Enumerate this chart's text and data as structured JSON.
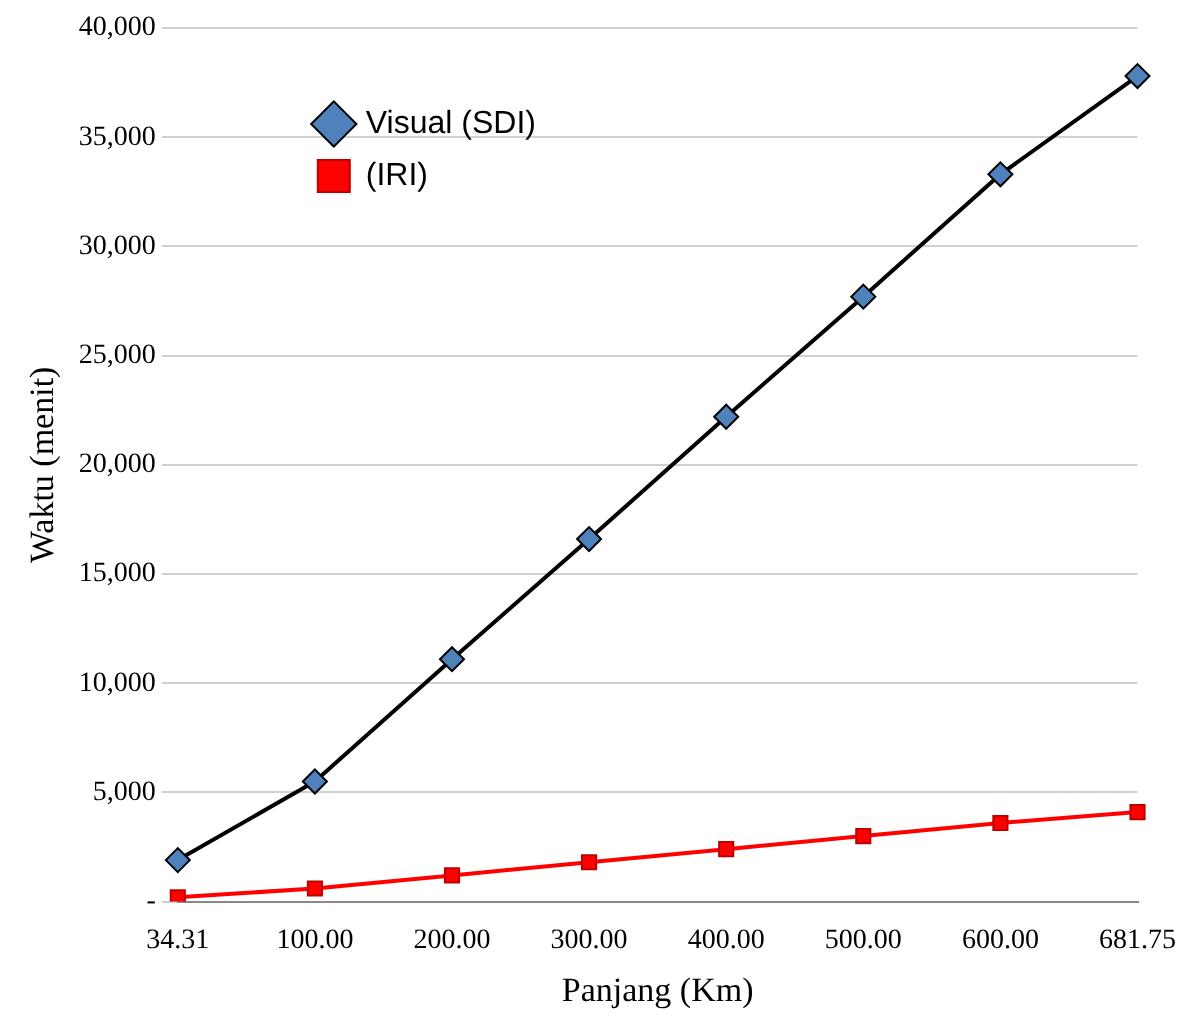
{
  "chart_data": {
    "type": "line",
    "xlabel": "Panjang (Km)",
    "ylabel": "Waktu (menit)",
    "categories": [
      "34.31",
      "100.00",
      "200.00",
      "300.00",
      "400.00",
      "500.00",
      "600.00",
      "681.75"
    ],
    "series": [
      {
        "name": "Visual (SDI)",
        "color": "#000000",
        "colors": [
          "#4f81bd",
          "#4f81bd",
          "#4f81bd",
          "#4f81bd",
          "#4f81bd",
          "#4f81bd",
          "#4f81bd",
          "#4f81bd"
        ],
        "marker": "diamond",
        "values": [
          1900,
          5500,
          11100,
          16600,
          22200,
          27700,
          33300,
          37800
        ]
      },
      {
        "name": "(IRI)",
        "color": "#ff0000",
        "marker": "square",
        "values": [
          200,
          600,
          1200,
          1800,
          2400,
          3000,
          3600,
          4100
        ]
      }
    ],
    "ylim": [
      0,
      40000
    ],
    "yticks": [
      {
        "value": 0,
        "label": "-"
      },
      {
        "value": 5000,
        "label": "5,000"
      },
      {
        "value": 10000,
        "label": "10,000"
      },
      {
        "value": 15000,
        "label": "15,000"
      },
      {
        "value": 20000,
        "label": "20,000"
      },
      {
        "value": 25000,
        "label": "25,000"
      },
      {
        "value": 30000,
        "label": "30,000"
      },
      {
        "value": 35000,
        "label": "35,000"
      },
      {
        "value": 40000,
        "label": "40,000"
      }
    ],
    "grid": "y",
    "legend": "top left",
    "line_style": "solid"
  }
}
